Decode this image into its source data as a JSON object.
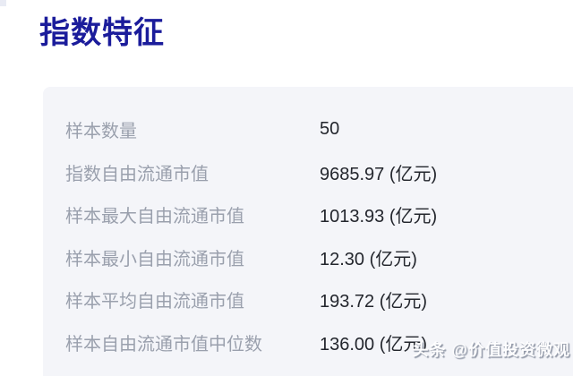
{
  "page": {
    "title": "指数特征"
  },
  "table": {
    "rows": [
      {
        "label": "样本数量",
        "value": "50"
      },
      {
        "label": "指数自由流通市值",
        "value": "9685.97 (亿元)"
      },
      {
        "label": "样本最大自由流通市值",
        "value": "1013.93 (亿元)"
      },
      {
        "label": "样本最小自由流通市值",
        "value": "12.30 (亿元)"
      },
      {
        "label": "样本平均自由流通市值",
        "value": "193.72 (亿元)"
      },
      {
        "label": "样本自由流通市值中位数",
        "value": "136.00 (亿元)"
      }
    ]
  },
  "watermark": {
    "text": "头条 @价值投资微观"
  },
  "colors": {
    "page_bg": "#ffffff",
    "panel_bg": "#f4f5f9",
    "title": "#1b1c9b",
    "label": "#9aa0ad",
    "value": "#23262d",
    "watermark": "#fdfdfe"
  }
}
